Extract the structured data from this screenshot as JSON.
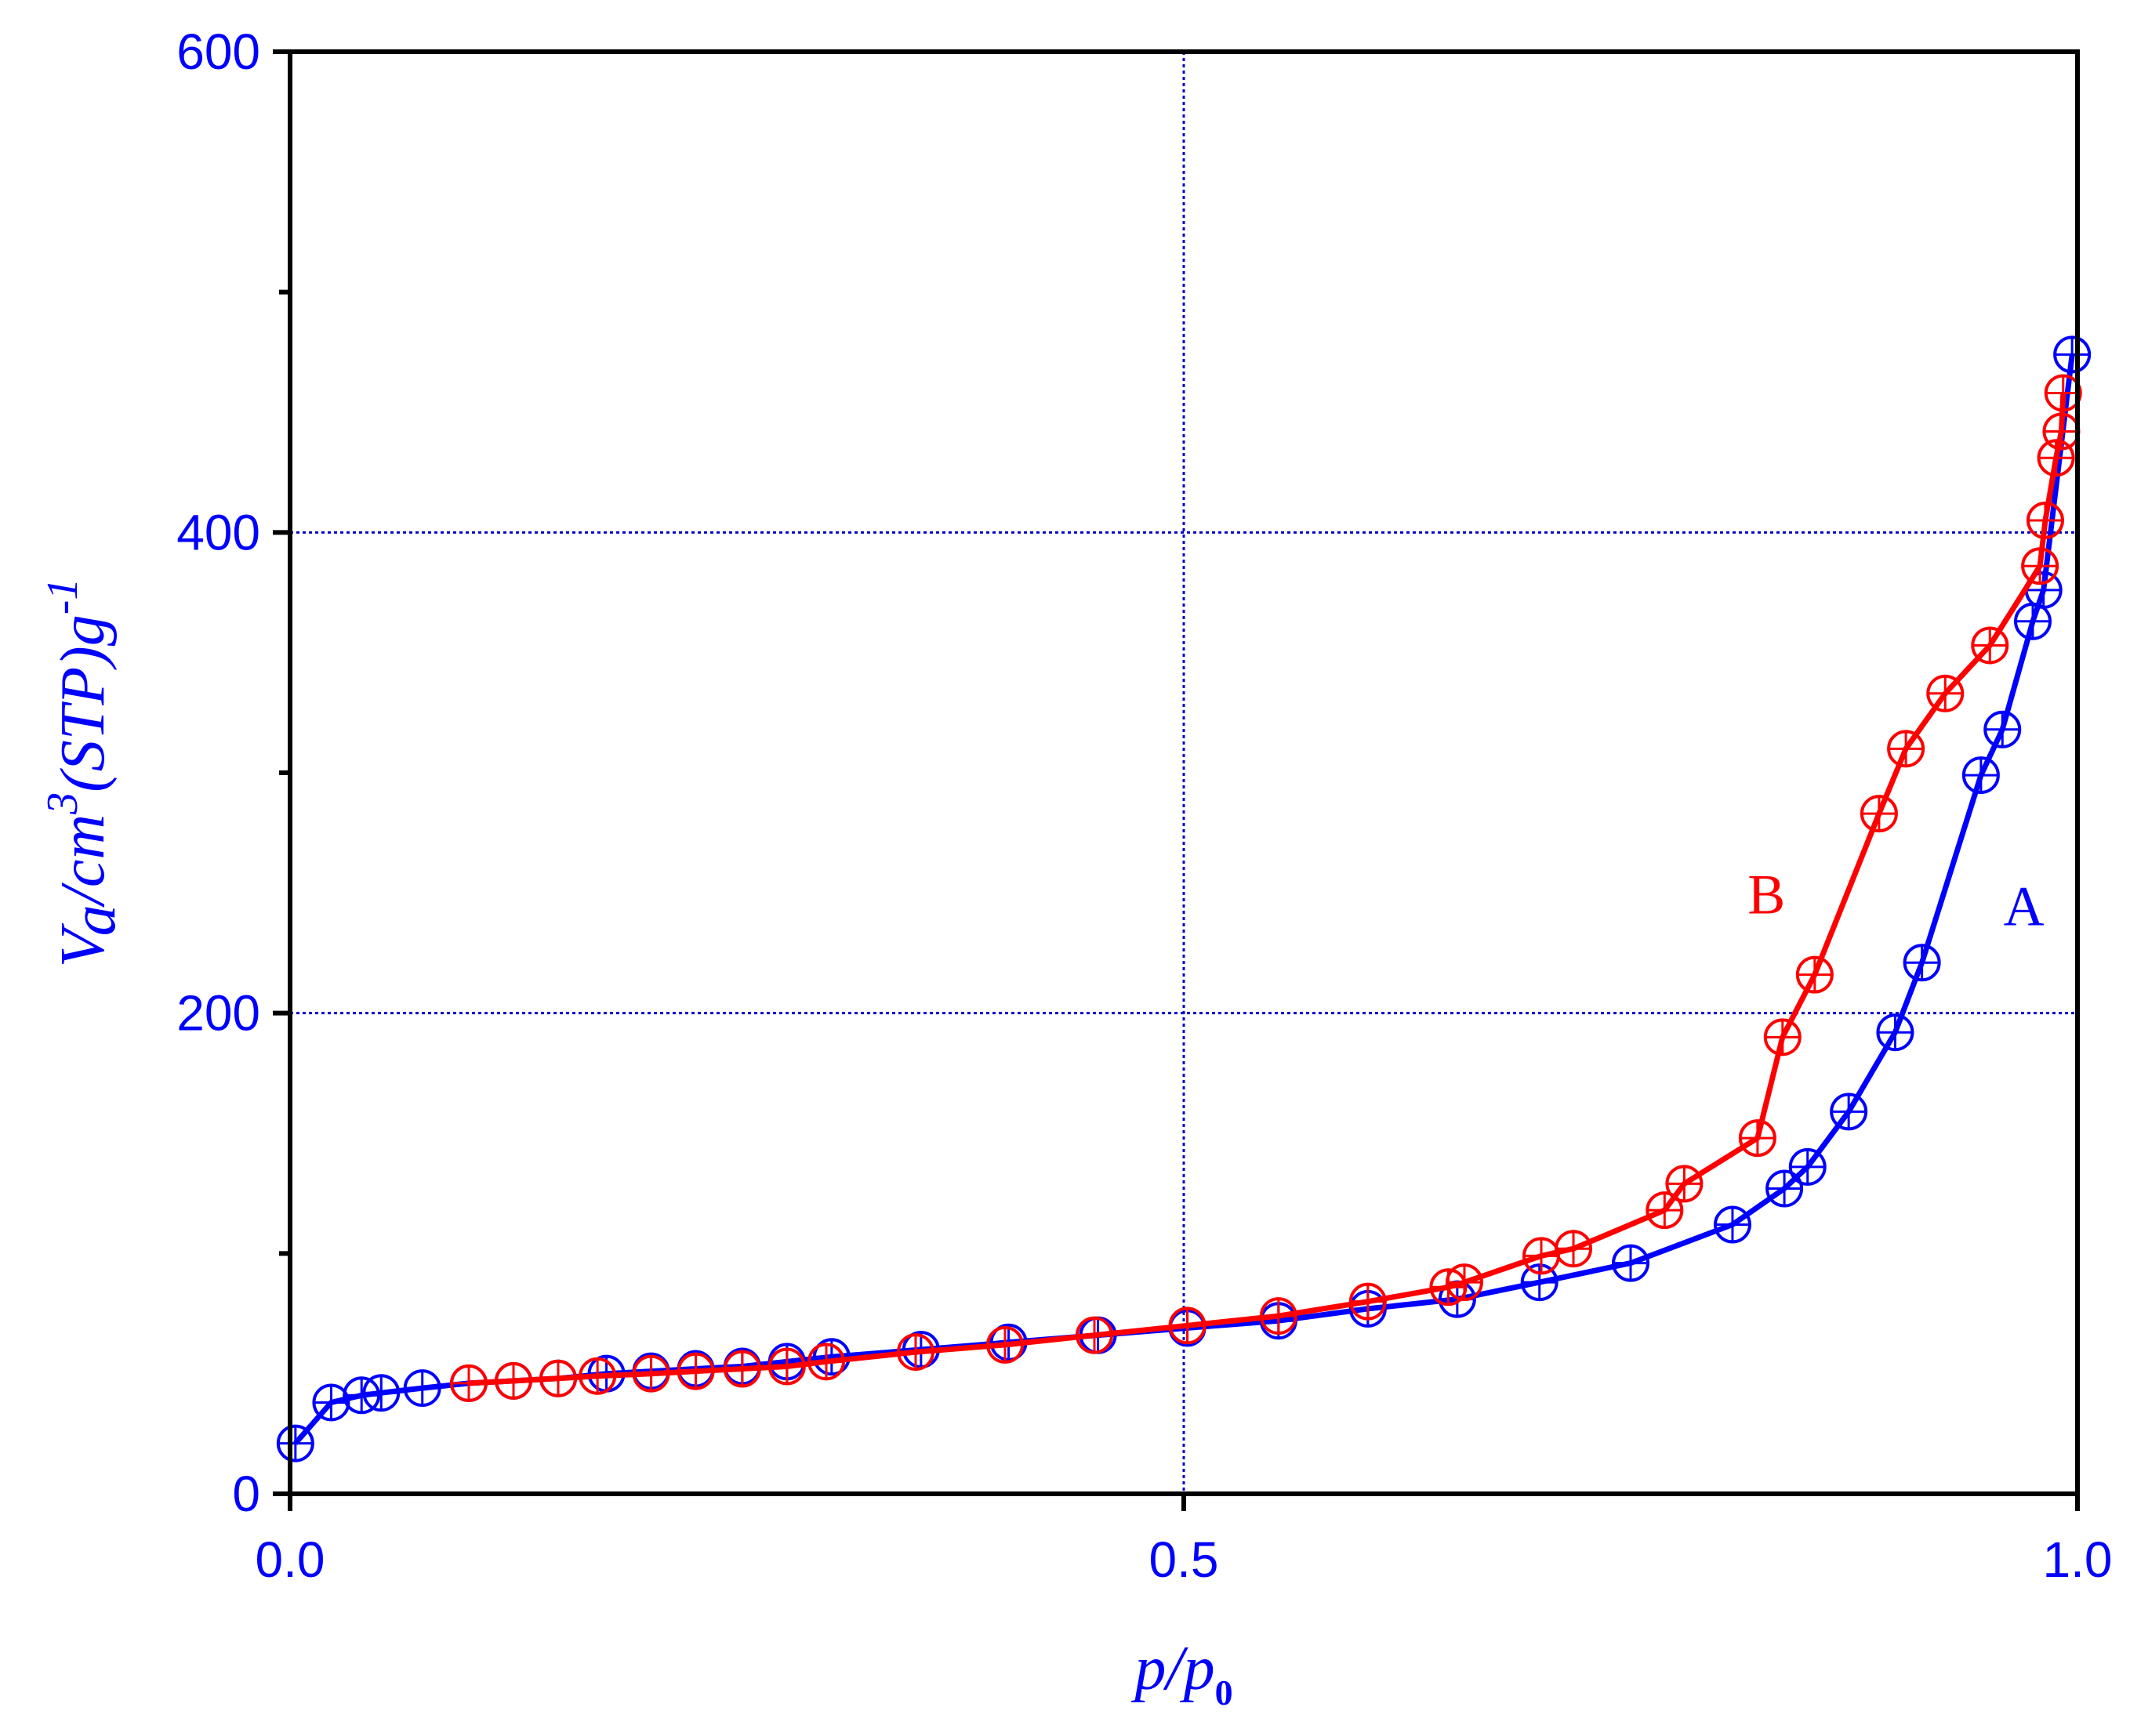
{
  "colors": {
    "axis_text": "#0000ff",
    "frame": "#000000",
    "grid": "#0000cc",
    "series_A": "#0000ff",
    "series_B": "#ff0000"
  },
  "chart_data": {
    "type": "line",
    "title": "",
    "xlabel": {
      "main": "p/p",
      "subscript": "0"
    },
    "ylabel": {
      "v": "V",
      "sub": "a",
      "unit": "/cm",
      "sup3": "3",
      "stp": "(STP)g",
      "sup": "-1"
    },
    "xlim": [
      0,
      1.0
    ],
    "ylim": [
      0,
      600
    ],
    "x_ticks": [
      {
        "value": 0.0,
        "label": "0.0"
      },
      {
        "value": 0.5,
        "label": "0.5"
      },
      {
        "value": 1.0,
        "label": "1.0"
      }
    ],
    "y_ticks": [
      {
        "value": 0,
        "label": "0"
      },
      {
        "value": 200,
        "label": "200"
      },
      {
        "value": 400,
        "label": "400"
      },
      {
        "value": 600,
        "label": "600"
      }
    ],
    "y_minor_ticks": [
      100,
      300,
      500
    ],
    "grid": {
      "x": [
        0.5
      ],
      "y": [
        200,
        400
      ],
      "style": "dotted"
    },
    "marker": "circle-plus",
    "series": [
      {
        "name": "A",
        "label_position": {
          "x": 0.97,
          "y": 245
        },
        "points": [
          [
            0.003,
            21
          ],
          [
            0.023,
            38
          ],
          [
            0.04,
            41
          ],
          [
            0.051,
            42
          ],
          [
            0.074,
            44
          ],
          [
            0.1,
            46
          ],
          [
            0.125,
            47
          ],
          [
            0.15,
            48
          ],
          [
            0.177,
            50
          ],
          [
            0.202,
            51
          ],
          [
            0.227,
            52
          ],
          [
            0.253,
            53
          ],
          [
            0.278,
            55
          ],
          [
            0.303,
            57
          ],
          [
            0.353,
            60
          ],
          [
            0.402,
            63
          ],
          [
            0.452,
            66
          ],
          [
            0.502,
            69
          ],
          [
            0.553,
            72
          ],
          [
            0.603,
            77
          ],
          [
            0.653,
            81
          ],
          [
            0.699,
            88
          ],
          [
            0.75,
            96
          ],
          [
            0.807,
            112
          ],
          [
            0.836,
            127
          ],
          [
            0.849,
            136
          ],
          [
            0.872,
            159
          ],
          [
            0.898,
            192
          ],
          [
            0.913,
            221
          ],
          [
            0.946,
            299
          ],
          [
            0.958,
            318
          ],
          [
            0.975,
            363
          ],
          [
            0.981,
            376
          ],
          [
            0.997,
            474
          ]
        ]
      },
      {
        "name": "B",
        "label_position": {
          "x": 0.826,
          "y": 250
        },
        "points": [
          [
            0.1,
            46
          ],
          [
            0.125,
            47
          ],
          [
            0.15,
            48
          ],
          [
            0.172,
            49
          ],
          [
            0.202,
            50
          ],
          [
            0.227,
            51
          ],
          [
            0.253,
            52
          ],
          [
            0.278,
            53
          ],
          [
            0.3,
            55
          ],
          [
            0.35,
            59
          ],
          [
            0.4,
            62
          ],
          [
            0.45,
            66
          ],
          [
            0.502,
            70
          ],
          [
            0.553,
            74
          ],
          [
            0.603,
            80
          ],
          [
            0.648,
            86
          ],
          [
            0.657,
            88
          ],
          [
            0.7,
            99
          ],
          [
            0.718,
            102
          ],
          [
            0.769,
            118
          ],
          [
            0.78,
            129
          ],
          [
            0.821,
            148
          ],
          [
            0.835,
            190
          ],
          [
            0.853,
            216
          ],
          [
            0.889,
            283
          ],
          [
            0.904,
            310
          ],
          [
            0.926,
            333
          ],
          [
            0.951,
            353
          ],
          [
            0.979,
            386
          ],
          [
            0.982,
            405
          ],
          [
            0.988,
            431
          ],
          [
            0.991,
            442
          ],
          [
            0.992,
            458
          ]
        ]
      }
    ]
  }
}
